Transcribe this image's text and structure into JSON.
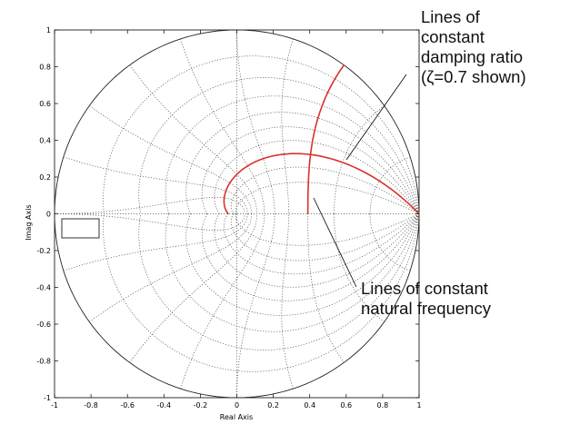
{
  "chart_data": {
    "type": "line",
    "title": "",
    "xlabel": "Real Axis",
    "ylabel": "Imag Axis",
    "xlim": [
      -1,
      1
    ],
    "ylim": [
      -1,
      1
    ],
    "xticks": [
      "-1",
      "-0.8",
      "-0.6",
      "-0.4",
      "-0.2",
      "0",
      "0.2",
      "0.4",
      "0.6",
      "0.8",
      "1"
    ],
    "yticks": [
      "-1",
      "-0.8",
      "-0.6",
      "-0.4",
      "-0.2",
      "0",
      "0.2",
      "0.4",
      "0.6",
      "0.8",
      "1"
    ],
    "grid": "z-plane damping ratio and natural frequency grid",
    "grid_damping_ratios": [
      0.1,
      0.2,
      0.3,
      0.4,
      0.5,
      0.6,
      0.7,
      0.8,
      0.9
    ],
    "grid_natural_frequencies_pi_over_T": [
      0.1,
      0.2,
      0.3,
      0.4,
      0.5,
      0.6,
      0.7,
      0.8,
      0.9,
      1.0
    ],
    "highlight": {
      "damping_ratio_line": 0.7,
      "natural_frequency_line": 0.3,
      "color": "#d9312b"
    },
    "annotations": [
      {
        "lines": [
          "Lines of",
          "constant",
          "damping ratio",
          "(ζ=0.7 shown)"
        ]
      },
      {
        "lines": [
          "Lines of constant",
          "natural frequency"
        ]
      }
    ]
  }
}
